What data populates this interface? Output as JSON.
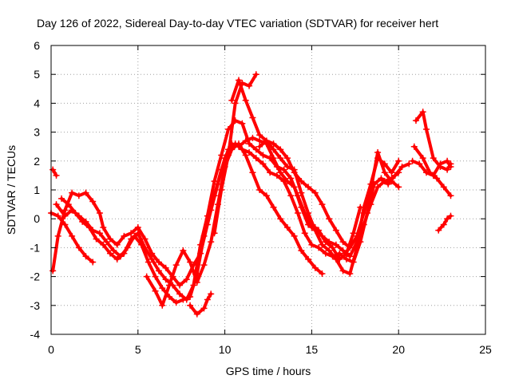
{
  "chart_data": {
    "type": "scatter",
    "title": "Day 126 of 2022, Sidereal Day-to-day VTEC variation (SDTVAR) for receiver hert",
    "xlabel": "GPS time / hours",
    "ylabel": "SDTVAR / TECUs",
    "xlim": [
      0,
      25
    ],
    "ylim": [
      -4,
      6
    ],
    "xticks": [
      "0",
      "5",
      "10",
      "15",
      "20",
      "25"
    ],
    "yticks": [
      "-4",
      "-3",
      "-2",
      "-1",
      "0",
      "1",
      "2",
      "3",
      "4",
      "5",
      "6"
    ],
    "grid": true,
    "marker": "plus",
    "color": "#ff0000",
    "series": [
      {
        "name": "s1",
        "points": [
          [
            0.1,
            -1.8
          ],
          [
            0.4,
            -0.6
          ],
          [
            0.8,
            0.3
          ],
          [
            1.2,
            0.9
          ],
          [
            1.6,
            0.8
          ],
          [
            2.0,
            0.9
          ],
          [
            2.4,
            0.6
          ],
          [
            2.8,
            0.2
          ],
          [
            3.0,
            -0.3
          ],
          [
            3.4,
            -0.7
          ],
          [
            3.8,
            -0.9
          ],
          [
            4.2,
            -0.6
          ],
          [
            4.6,
            -0.5
          ],
          [
            5.0,
            -0.3
          ],
          [
            5.4,
            -0.7
          ],
          [
            5.8,
            -1.2
          ],
          [
            6.2,
            -1.5
          ],
          [
            6.6,
            -1.7
          ],
          [
            7.0,
            -2.0
          ],
          [
            7.4,
            -2.3
          ],
          [
            7.8,
            -2.1
          ],
          [
            8.2,
            -1.6
          ],
          [
            8.6,
            -1.2
          ],
          [
            9.0,
            -0.2
          ],
          [
            9.4,
            0.8
          ],
          [
            9.8,
            1.7
          ],
          [
            10.2,
            2.4
          ],
          [
            10.6,
            2.6
          ],
          [
            11.0,
            2.4
          ],
          [
            11.4,
            2.3
          ],
          [
            11.8,
            2.1
          ],
          [
            12.2,
            1.9
          ],
          [
            12.6,
            1.6
          ],
          [
            13.0,
            1.5
          ],
          [
            13.4,
            1.3
          ],
          [
            13.8,
            0.8
          ],
          [
            14.2,
            0.2
          ],
          [
            14.6,
            -0.5
          ],
          [
            15.0,
            -0.9
          ],
          [
            15.4,
            -1.0
          ],
          [
            15.8,
            -1.2
          ],
          [
            16.2,
            -1.3
          ],
          [
            16.6,
            -1.2
          ],
          [
            17.0,
            -1.4
          ],
          [
            17.4,
            -1.5
          ],
          [
            17.8,
            -0.8
          ],
          [
            18.2,
            0.2
          ],
          [
            18.6,
            1.2
          ],
          [
            19.0,
            1.4
          ],
          [
            19.4,
            1.2
          ],
          [
            19.8,
            1.5
          ],
          [
            20.2,
            1.8
          ],
          [
            20.6,
            1.9
          ]
        ]
      },
      {
        "name": "s2",
        "points": [
          [
            0.3,
            0.5
          ],
          [
            0.8,
            0.1
          ],
          [
            1.2,
            0.3
          ],
          [
            1.6,
            0.1
          ],
          [
            2.0,
            -0.1
          ],
          [
            2.4,
            -0.4
          ],
          [
            2.8,
            -0.5
          ],
          [
            3.2,
            -0.8
          ],
          [
            3.6,
            -1.1
          ],
          [
            4.0,
            -1.3
          ],
          [
            4.4,
            -1.0
          ],
          [
            4.8,
            -0.6
          ],
          [
            5.2,
            -0.9
          ],
          [
            5.6,
            -1.5
          ],
          [
            6.0,
            -2.0
          ],
          [
            6.4,
            -2.4
          ],
          [
            6.8,
            -2.7
          ],
          [
            7.2,
            -2.9
          ],
          [
            7.6,
            -2.8
          ],
          [
            8.0,
            -2.7
          ],
          [
            8.4,
            -1.9
          ],
          [
            8.8,
            -0.6
          ],
          [
            9.2,
            0.3
          ],
          [
            9.6,
            1.2
          ],
          [
            10.0,
            2.1
          ],
          [
            10.4,
            2.6
          ],
          [
            10.8,
            2.5
          ],
          [
            11.2,
            2.7
          ],
          [
            11.6,
            2.8
          ],
          [
            12.0,
            2.7
          ],
          [
            12.4,
            2.6
          ],
          [
            12.8,
            2.1
          ],
          [
            13.2,
            1.6
          ],
          [
            13.6,
            1.3
          ],
          [
            14.0,
            1.1
          ],
          [
            14.4,
            0.4
          ],
          [
            14.8,
            -0.2
          ],
          [
            15.2,
            -0.3
          ],
          [
            15.6,
            -0.6
          ],
          [
            16.0,
            -0.8
          ],
          [
            16.4,
            -0.9
          ],
          [
            16.8,
            -1.1
          ],
          [
            17.2,
            -1.3
          ],
          [
            17.6,
            -0.8
          ],
          [
            18.0,
            -0.2
          ],
          [
            18.4,
            0.5
          ],
          [
            18.8,
            1.1
          ],
          [
            19.2,
            1.3
          ],
          [
            19.6,
            1.4
          ],
          [
            20.0,
            1.6
          ]
        ]
      },
      {
        "name": "s3",
        "points": [
          [
            0.0,
            0.2
          ],
          [
            0.4,
            0.1
          ],
          [
            0.8,
            -0.2
          ],
          [
            1.2,
            -0.6
          ],
          [
            1.6,
            -1.0
          ],
          [
            2.0,
            -1.3
          ],
          [
            2.4,
            -1.5
          ]
        ]
      },
      {
        "name": "s4",
        "points": [
          [
            0.6,
            0.7
          ],
          [
            1.0,
            0.5
          ],
          [
            1.4,
            0.2
          ],
          [
            1.8,
            -0.1
          ],
          [
            2.2,
            -0.3
          ],
          [
            2.6,
            -0.7
          ],
          [
            3.0,
            -0.9
          ],
          [
            3.4,
            -1.2
          ],
          [
            3.8,
            -1.4
          ],
          [
            4.2,
            -1.2
          ],
          [
            4.6,
            -0.7
          ],
          [
            5.0,
            -0.5
          ],
          [
            5.4,
            -1.0
          ],
          [
            5.8,
            -1.4
          ],
          [
            6.2,
            -1.8
          ],
          [
            6.6,
            -2.1
          ],
          [
            7.0,
            -2.3
          ],
          [
            7.4,
            -2.6
          ],
          [
            7.8,
            -2.8
          ],
          [
            8.2,
            -2.3
          ],
          [
            8.6,
            -0.9
          ],
          [
            9.0,
            0.1
          ],
          [
            9.4,
            1.3
          ],
          [
            9.8,
            2.2
          ],
          [
            10.2,
            3.1
          ],
          [
            10.6,
            3.4
          ],
          [
            11.0,
            3.3
          ],
          [
            11.4,
            2.6
          ],
          [
            11.8,
            2.4
          ],
          [
            12.2,
            2.2
          ],
          [
            12.6,
            2.1
          ],
          [
            13.0,
            1.8
          ],
          [
            13.4,
            1.7
          ],
          [
            13.8,
            1.4
          ],
          [
            14.2,
            0.8
          ],
          [
            14.6,
            0.2
          ],
          [
            15.0,
            -0.3
          ],
          [
            15.4,
            -0.4
          ],
          [
            15.8,
            -0.8
          ],
          [
            16.2,
            -1.0
          ],
          [
            16.6,
            -1.4
          ],
          [
            17.0,
            -1.2
          ],
          [
            17.4,
            -0.5
          ],
          [
            17.8,
            0.4
          ]
        ]
      },
      {
        "name": "s5",
        "points": [
          [
            5.5,
            -2.0
          ],
          [
            6.0,
            -2.5
          ],
          [
            6.4,
            -3.0
          ],
          [
            6.8,
            -2.3
          ],
          [
            7.2,
            -1.6
          ],
          [
            7.6,
            -1.1
          ],
          [
            8.0,
            -1.5
          ],
          [
            8.4,
            -2.2
          ],
          [
            8.8,
            -1.6
          ],
          [
            9.2,
            -0.8
          ],
          [
            9.6,
            0.5
          ],
          [
            10.0,
            1.8
          ],
          [
            10.4,
            2.4
          ],
          [
            10.8,
            2.6
          ],
          [
            11.2,
            2.2
          ],
          [
            11.6,
            1.6
          ],
          [
            12.0,
            1.0
          ],
          [
            12.4,
            0.8
          ],
          [
            12.8,
            0.4
          ],
          [
            13.2,
            0.0
          ],
          [
            13.6,
            -0.3
          ],
          [
            14.0,
            -0.6
          ],
          [
            14.4,
            -1.1
          ],
          [
            14.8,
            -1.4
          ],
          [
            15.2,
            -1.7
          ],
          [
            15.6,
            -1.9
          ]
        ]
      },
      {
        "name": "s6",
        "points": [
          [
            8.0,
            -3.0
          ],
          [
            8.4,
            -3.3
          ],
          [
            8.8,
            -3.1
          ],
          [
            9.0,
            -2.8
          ],
          [
            9.2,
            -2.6
          ]
        ]
      },
      {
        "name": "s7",
        "points": [
          [
            9.4,
            -0.5
          ],
          [
            9.8,
            1.0
          ],
          [
            10.2,
            2.2
          ],
          [
            10.6,
            4.0
          ],
          [
            11.0,
            4.7
          ],
          [
            11.4,
            4.6
          ],
          [
            11.8,
            5.0
          ]
        ]
      },
      {
        "name": "s8",
        "points": [
          [
            10.4,
            4.1
          ],
          [
            10.8,
            4.8
          ],
          [
            11.2,
            4.1
          ],
          [
            11.6,
            3.5
          ],
          [
            12.0,
            2.9
          ],
          [
            12.4,
            2.7
          ],
          [
            12.8,
            2.4
          ],
          [
            13.2,
            2.1
          ],
          [
            13.6,
            1.8
          ],
          [
            14.0,
            1.7
          ],
          [
            14.4,
            0.9
          ],
          [
            14.8,
            0.2
          ],
          [
            15.2,
            -0.4
          ],
          [
            15.6,
            -0.9
          ],
          [
            16.0,
            -1.1
          ],
          [
            16.4,
            -1.4
          ],
          [
            16.8,
            -1.8
          ],
          [
            17.2,
            -1.9
          ],
          [
            17.6,
            -1.0
          ],
          [
            18.0,
            0.4
          ],
          [
            18.4,
            1.2
          ],
          [
            18.8,
            2.1
          ],
          [
            19.2,
            1.9
          ],
          [
            19.6,
            1.6
          ],
          [
            20.0,
            2.0
          ]
        ]
      },
      {
        "name": "s9",
        "points": [
          [
            12.0,
            2.5
          ],
          [
            12.4,
            2.7
          ],
          [
            12.8,
            2.6
          ],
          [
            13.2,
            2.4
          ],
          [
            13.6,
            2.1
          ],
          [
            14.0,
            1.6
          ],
          [
            14.4,
            1.3
          ],
          [
            14.8,
            1.1
          ],
          [
            15.2,
            0.9
          ],
          [
            15.6,
            0.5
          ],
          [
            16.0,
            0.0
          ],
          [
            16.4,
            -0.4
          ],
          [
            16.8,
            -0.8
          ],
          [
            17.2,
            -1.0
          ],
          [
            17.6,
            -0.6
          ],
          [
            18.0,
            0.2
          ],
          [
            18.4,
            1.0
          ],
          [
            18.8,
            2.3
          ],
          [
            19.2,
            1.6
          ],
          [
            19.6,
            1.3
          ],
          [
            20.0,
            1.1
          ]
        ]
      },
      {
        "name": "s10",
        "points": [
          [
            21.0,
            3.4
          ],
          [
            21.4,
            3.7
          ],
          [
            21.6,
            3.1
          ],
          [
            22.0,
            2.1
          ],
          [
            22.4,
            1.8
          ],
          [
            22.8,
            1.7
          ],
          [
            23.0,
            1.9
          ]
        ]
      },
      {
        "name": "s11",
        "points": [
          [
            20.9,
            2.5
          ],
          [
            21.4,
            2.1
          ],
          [
            21.8,
            1.6
          ],
          [
            22.2,
            1.4
          ],
          [
            22.6,
            1.1
          ],
          [
            23.0,
            0.8
          ]
        ]
      },
      {
        "name": "s12",
        "points": [
          [
            20.8,
            2.0
          ],
          [
            21.2,
            1.9
          ],
          [
            21.6,
            1.6
          ],
          [
            22.0,
            1.5
          ],
          [
            22.4,
            1.9
          ],
          [
            22.8,
            2.0
          ],
          [
            23.0,
            1.8
          ]
        ]
      },
      {
        "name": "s13",
        "points": [
          [
            22.3,
            -0.4
          ],
          [
            22.6,
            -0.2
          ],
          [
            22.8,
            0.0
          ],
          [
            23.0,
            0.1
          ]
        ]
      },
      {
        "name": "s14",
        "points": [
          [
            0.1,
            1.7
          ],
          [
            0.3,
            1.5
          ]
        ]
      }
    ]
  }
}
